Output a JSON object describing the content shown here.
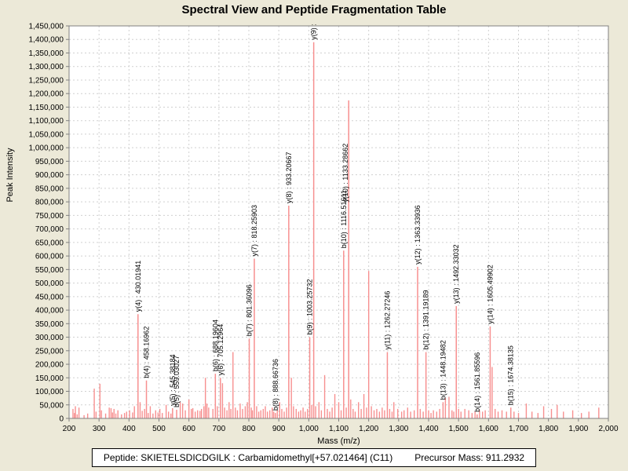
{
  "title": "Spectral View and Peptide Fragmentation Table",
  "footer": {
    "peptide_label": "Peptide: SKIETELSDICDGILK : Carbamidomethyl[+57.021464] (C11)",
    "precursor_label": "Precursor Mass: 911.2932"
  },
  "colors": {
    "page_background": "#ece9d8",
    "plot_background": "#ffffff",
    "peak": "#f79090",
    "grid": "#d0d0d0",
    "axis": "#808080",
    "text": "#000000"
  },
  "chart_data": {
    "type": "bar",
    "title": "Spectral View and Peptide Fragmentation Table",
    "xlabel": "Mass (m/z)",
    "ylabel": "Peak Intensity",
    "xlim": [
      200,
      2000
    ],
    "ylim": [
      0,
      1450000
    ],
    "x_tick_step": 100,
    "y_tick_step": 50000,
    "grid": true,
    "x_ticks": [
      "200",
      "300",
      "400",
      "500",
      "600",
      "700",
      "800",
      "900",
      "1,000",
      "1,100",
      "1,200",
      "1,300",
      "1,400",
      "1,500",
      "1,600",
      "1,700",
      "1,800",
      "1,900",
      "2,000"
    ],
    "y_ticks": [
      "0",
      "50,000",
      "100,000",
      "150,000",
      "200,000",
      "250,000",
      "300,000",
      "350,000",
      "400,000",
      "450,000",
      "500,000",
      "550,000",
      "600,000",
      "650,000",
      "700,000",
      "750,000",
      "800,000",
      "850,000",
      "900,000",
      "950,000",
      "1,000,000",
      "1,050,000",
      "1,100,000",
      "1,150,000",
      "1,200,000",
      "1,250,000",
      "1,300,000",
      "1,350,000",
      "1,400,000",
      "1,450,000"
    ],
    "annotated_peaks": [
      {
        "label": "y(4) : 430.01941",
        "mz": 430.01941,
        "intensity": 385000
      },
      {
        "label": "b(4) : 458.16962",
        "mz": 458.16962,
        "intensity": 140000
      },
      {
        "label": "y(5) : 545.38184",
        "mz": 545.38184,
        "intensity": 38000
      },
      {
        "label": "b(5) : 559.03027",
        "mz": 559.03027,
        "intensity": 32000
      },
      {
        "label": "b(6) : 688.19604",
        "mz": 688.19604,
        "intensity": 165000
      },
      {
        "label": "y(6) : 705.12964",
        "mz": 705.12964,
        "intensity": 150000
      },
      {
        "label": "b(7) : 801.36096",
        "mz": 801.36096,
        "intensity": 295000
      },
      {
        "label": "y(7) : 818.25903",
        "mz": 818.25903,
        "intensity": 590000
      },
      {
        "label": "b(8) : 888.66736",
        "mz": 888.66736,
        "intensity": 20000
      },
      {
        "label": "y(8) : 933.20667",
        "mz": 933.20667,
        "intensity": 786000
      },
      {
        "label": "b(9) : 1003.25732",
        "mz": 1003.25732,
        "intensity": 300000
      },
      {
        "label": "y(9) :",
        "mz": 1016.5,
        "intensity": 1390000
      },
      {
        "label": "b(10) : 1116.51611",
        "mz": 1116.51611,
        "intensity": 620000
      },
      {
        "label": "y(10) : 1133.28662",
        "mz": 1133.28662,
        "intensity": 1175000,
        "label_bottom_intensity": 790000,
        "dx": -4
      },
      {
        "label": "y(11) : 1262.27246",
        "mz": 1262.27246,
        "intensity": 245000
      },
      {
        "label": "y(12) : 1363.33936",
        "mz": 1363.33936,
        "intensity": 560000
      },
      {
        "label": "b(12) : 1391.19189",
        "mz": 1391.19189,
        "intensity": 245000
      },
      {
        "label": "b(13) : 1448.19482",
        "mz": 1448.19482,
        "intensity": 60000
      },
      {
        "label": "y(13) : 1492.33032",
        "mz": 1492.33032,
        "intensity": 415000
      },
      {
        "label": "b(14) : 1561.85596",
        "mz": 1561.85596,
        "intensity": 15000
      },
      {
        "label": "y(14) : 1605.49902",
        "mz": 1605.49902,
        "intensity": 340000
      },
      {
        "label": "b(15) : 1674.38135",
        "mz": 1674.38135,
        "intensity": 40000
      }
    ],
    "background_peaks": [
      [
        213,
        35000
      ],
      [
        218,
        20000
      ],
      [
        221,
        45000
      ],
      [
        227,
        15000
      ],
      [
        233,
        40000
      ],
      [
        250,
        12000
      ],
      [
        262,
        18000
      ],
      [
        284,
        110000
      ],
      [
        290,
        25000
      ],
      [
        303,
        128000
      ],
      [
        308,
        30000
      ],
      [
        322,
        18000
      ],
      [
        334,
        40000
      ],
      [
        340,
        38000
      ],
      [
        345,
        22000
      ],
      [
        350,
        35000
      ],
      [
        356,
        18000
      ],
      [
        363,
        30000
      ],
      [
        375,
        15000
      ],
      [
        385,
        20000
      ],
      [
        392,
        25000
      ],
      [
        402,
        30000
      ],
      [
        412,
        22000
      ],
      [
        418,
        45000
      ],
      [
        437,
        60000
      ],
      [
        444,
        28000
      ],
      [
        452,
        35000
      ],
      [
        464,
        20000
      ],
      [
        471,
        45000
      ],
      [
        480,
        18000
      ],
      [
        489,
        30000
      ],
      [
        497,
        22000
      ],
      [
        503,
        35000
      ],
      [
        511,
        20000
      ],
      [
        524,
        50000
      ],
      [
        532,
        25000
      ],
      [
        540,
        18000
      ],
      [
        571,
        60000
      ],
      [
        579,
        55000
      ],
      [
        588,
        30000
      ],
      [
        600,
        70000
      ],
      [
        608,
        35000
      ],
      [
        613,
        38000
      ],
      [
        621,
        25000
      ],
      [
        629,
        30000
      ],
      [
        637,
        28000
      ],
      [
        642,
        35000
      ],
      [
        650,
        45000
      ],
      [
        655,
        150000
      ],
      [
        660,
        55000
      ],
      [
        666,
        40000
      ],
      [
        680,
        35000
      ],
      [
        695,
        45000
      ],
      [
        712,
        130000
      ],
      [
        719,
        40000
      ],
      [
        727,
        30000
      ],
      [
        734,
        60000
      ],
      [
        740,
        35000
      ],
      [
        747,
        245000
      ],
      [
        755,
        40000
      ],
      [
        762,
        30000
      ],
      [
        771,
        55000
      ],
      [
        779,
        35000
      ],
      [
        788,
        45000
      ],
      [
        795,
        60000
      ],
      [
        808,
        40000
      ],
      [
        812,
        30000
      ],
      [
        826,
        45000
      ],
      [
        833,
        25000
      ],
      [
        840,
        30000
      ],
      [
        848,
        35000
      ],
      [
        855,
        45000
      ],
      [
        862,
        25000
      ],
      [
        870,
        30000
      ],
      [
        878,
        40000
      ],
      [
        883,
        25000
      ],
      [
        895,
        30000
      ],
      [
        903,
        60000
      ],
      [
        910,
        35000
      ],
      [
        918,
        25000
      ],
      [
        926,
        40000
      ],
      [
        942,
        150000
      ],
      [
        949,
        45000
      ],
      [
        958,
        35000
      ],
      [
        966,
        25000
      ],
      [
        973,
        30000
      ],
      [
        981,
        40000
      ],
      [
        988,
        25000
      ],
      [
        996,
        35000
      ],
      [
        1010,
        50000
      ],
      [
        1023,
        45000
      ],
      [
        1034,
        60000
      ],
      [
        1042,
        30000
      ],
      [
        1053,
        160000
      ],
      [
        1062,
        35000
      ],
      [
        1070,
        25000
      ],
      [
        1078,
        40000
      ],
      [
        1087,
        90000
      ],
      [
        1100,
        60000
      ],
      [
        1108,
        30000
      ],
      [
        1125,
        40000
      ],
      [
        1140,
        70000
      ],
      [
        1148,
        35000
      ],
      [
        1155,
        25000
      ],
      [
        1166,
        60000
      ],
      [
        1175,
        35000
      ],
      [
        1184,
        90000
      ],
      [
        1193,
        40000
      ],
      [
        1200,
        545000
      ],
      [
        1209,
        45000
      ],
      [
        1218,
        30000
      ],
      [
        1227,
        35000
      ],
      [
        1236,
        25000
      ],
      [
        1245,
        40000
      ],
      [
        1253,
        30000
      ],
      [
        1270,
        35000
      ],
      [
        1278,
        25000
      ],
      [
        1284,
        60000
      ],
      [
        1297,
        35000
      ],
      [
        1310,
        25000
      ],
      [
        1318,
        30000
      ],
      [
        1330,
        40000
      ],
      [
        1340,
        25000
      ],
      [
        1352,
        30000
      ],
      [
        1372,
        35000
      ],
      [
        1382,
        25000
      ],
      [
        1400,
        30000
      ],
      [
        1408,
        20000
      ],
      [
        1416,
        30000
      ],
      [
        1427,
        25000
      ],
      [
        1437,
        35000
      ],
      [
        1456,
        75000
      ],
      [
        1468,
        80000
      ],
      [
        1478,
        30000
      ],
      [
        1484,
        25000
      ],
      [
        1500,
        35000
      ],
      [
        1508,
        25000
      ],
      [
        1521,
        35000
      ],
      [
        1534,
        30000
      ],
      [
        1545,
        20000
      ],
      [
        1555,
        25000
      ],
      [
        1570,
        30000
      ],
      [
        1580,
        25000
      ],
      [
        1589,
        30000
      ],
      [
        1612,
        190000
      ],
      [
        1622,
        35000
      ],
      [
        1632,
        25000
      ],
      [
        1645,
        30000
      ],
      [
        1660,
        25000
      ],
      [
        1685,
        25000
      ],
      [
        1700,
        20000
      ],
      [
        1726,
        55000
      ],
      [
        1745,
        25000
      ],
      [
        1765,
        20000
      ],
      [
        1784,
        45000
      ],
      [
        1810,
        35000
      ],
      [
        1829,
        50000
      ],
      [
        1850,
        25000
      ],
      [
        1881,
        30000
      ],
      [
        1910,
        20000
      ],
      [
        1935,
        25000
      ],
      [
        1968,
        40000
      ]
    ]
  }
}
